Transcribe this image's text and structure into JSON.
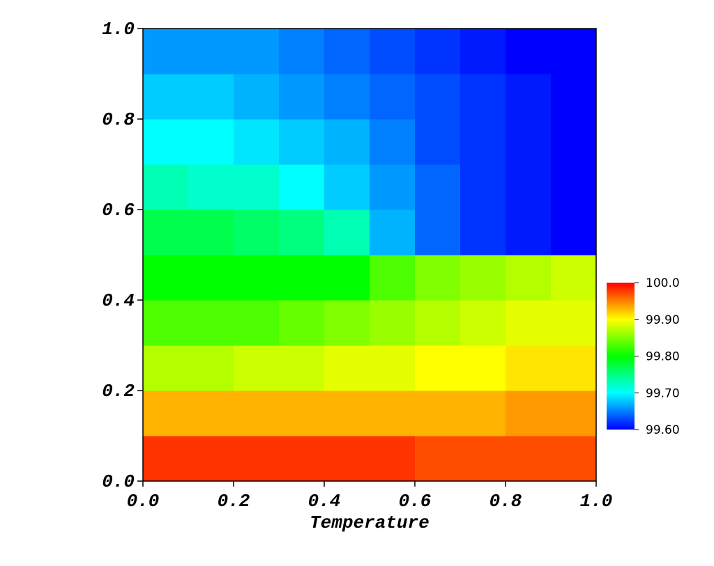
{
  "chart_data": {
    "type": "heatmap",
    "xlabel": "Temperature",
    "x": [
      0.05,
      0.15,
      0.25,
      0.35,
      0.45,
      0.55,
      0.65,
      0.75,
      0.85,
      0.95
    ],
    "y": [
      0.05,
      0.15,
      0.25,
      0.35,
      0.45,
      0.55,
      0.65,
      0.75,
      0.85,
      0.95
    ],
    "z": [
      [
        99.98,
        99.98,
        99.98,
        99.98,
        99.98,
        99.98,
        99.97,
        99.97,
        99.97,
        99.97
      ],
      [
        99.93,
        99.93,
        99.93,
        99.93,
        99.93,
        99.93,
        99.93,
        99.93,
        99.94,
        99.94
      ],
      [
        99.87,
        99.87,
        99.88,
        99.88,
        99.89,
        99.89,
        99.9,
        99.9,
        99.91,
        99.91
      ],
      [
        99.83,
        99.83,
        99.83,
        99.84,
        99.85,
        99.86,
        99.87,
        99.88,
        99.89,
        99.89
      ],
      [
        99.8,
        99.8,
        99.8,
        99.8,
        99.8,
        99.83,
        99.85,
        99.86,
        99.87,
        99.88
      ],
      [
        99.77,
        99.77,
        99.76,
        99.75,
        99.73,
        99.67,
        99.64,
        99.62,
        99.61,
        99.6
      ],
      [
        99.73,
        99.72,
        99.72,
        99.7,
        99.68,
        99.66,
        99.64,
        99.62,
        99.61,
        99.6
      ],
      [
        99.7,
        99.7,
        99.69,
        99.68,
        99.67,
        99.65,
        99.63,
        99.62,
        99.61,
        99.6
      ],
      [
        99.68,
        99.68,
        99.67,
        99.66,
        99.65,
        99.64,
        99.63,
        99.62,
        99.61,
        99.6
      ],
      [
        99.66,
        99.66,
        99.66,
        99.65,
        99.64,
        99.63,
        99.62,
        99.61,
        99.6,
        99.6
      ]
    ],
    "xlim": [
      0,
      1
    ],
    "ylim": [
      0,
      1
    ],
    "xticks": [
      {
        "value": 0,
        "label": "0.0"
      },
      0.2,
      0.4,
      0.6,
      0.8,
      {
        "value": 1,
        "label": "1.0"
      }
    ],
    "yticks": [
      {
        "value": 0,
        "label": "0.0"
      },
      0.2,
      0.4,
      0.6,
      0.8,
      {
        "value": 1,
        "label": "1.0"
      }
    ],
    "clim": [
      99.6,
      100
    ],
    "cticks": [
      {
        "value": 99.6,
        "label": "99.60"
      },
      {
        "value": 99.7,
        "label": "99.70"
      },
      {
        "value": 99.8,
        "label": "99.80"
      },
      {
        "value": 99.9,
        "label": "99.90"
      },
      {
        "value": 100,
        "label": "100.0"
      }
    ],
    "colormap": [
      "#0000ff",
      "#00ffff",
      "#00ff00",
      "#ffff00",
      "#ff0000"
    ]
  }
}
